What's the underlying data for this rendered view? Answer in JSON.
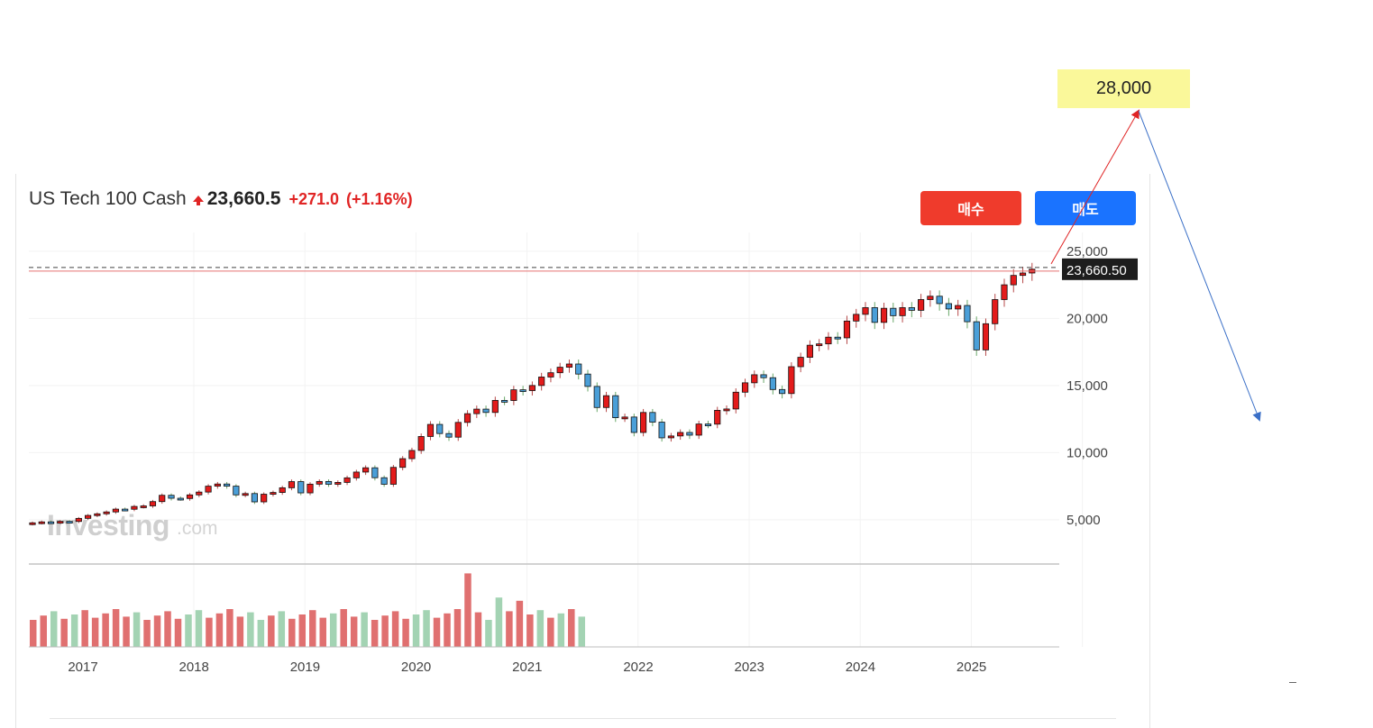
{
  "header": {
    "instrument": "US Tech 100 Cash",
    "price": "23,660.5",
    "change": "+271.0",
    "change_pct": "(+1.16%)"
  },
  "buttons": {
    "buy": "매수",
    "sell": "매도"
  },
  "annotation": {
    "target": "28,000",
    "current_label": "23,660.50"
  },
  "watermark": {
    "brand": "Investing",
    "suffix": ".com"
  },
  "colors": {
    "up": "#e31b1b",
    "down": "#4a9fd8",
    "vol_up": "#e07070",
    "vol_down": "#a3d3b3",
    "up_arrow": "#e02424",
    "down_arrow": "#3a6fc7"
  },
  "chart_data": {
    "type": "candlestick",
    "title": "US Tech 100 Cash",
    "y_ticks": [
      "25,000",
      "20,000",
      "15,000",
      "10,000",
      "5,000"
    ],
    "y_tick_values": [
      25000,
      20000,
      15000,
      10000,
      5000
    ],
    "x_ticks": [
      "2017",
      "2018",
      "2019",
      "2020",
      "2021",
      "2022",
      "2023",
      "2024",
      "2025"
    ],
    "x_tick_years": [
      2017,
      2018,
      2019,
      2020,
      2021,
      2022,
      2023,
      2024,
      2025
    ],
    "ylim": [
      1700,
      26400
    ],
    "interval": "monthly",
    "first_month": "2016-08",
    "current_price": 23660.5,
    "target_price": 28000,
    "grid": true,
    "monthly_close": [
      4770,
      4840,
      4800,
      4880,
      4870,
      5100,
      5320,
      5440,
      5580,
      5790,
      5780,
      5990,
      6030,
      6350,
      6820,
      6600,
      6580,
      6850,
      7060,
      7500,
      7660,
      7500,
      6850,
      6950,
      6330,
      6900,
      7030,
      7380,
      7840,
      7000,
      7650,
      7850,
      7640,
      7780,
      8120,
      8550,
      8870,
      8130,
      7640,
      8900,
      9550,
      10160,
      11200,
      12100,
      11420,
      11150,
      12250,
      12900,
      13240,
      12990,
      13890,
      13880,
      14680,
      14620,
      15000,
      15630,
      15950,
      16360,
      16600,
      15850,
      14930,
      13360,
      14240,
      12600,
      12650,
      11500,
      12990,
      12270,
      11100,
      11240,
      11500,
      11300,
      12130,
      12120,
      13150,
      13250,
      14500,
      15200,
      15800,
      15580,
      14700,
      14400,
      16400,
      17100,
      18000,
      18100,
      18600,
      18550,
      19800,
      20300,
      20800,
      19700,
      20750,
      20200,
      20800,
      20600,
      21400,
      21650,
      21100,
      20700,
      20960,
      19750,
      17650,
      19600,
      21400,
      22500,
      23200,
      23380,
      23660.5
    ],
    "volume_bars": 54
  }
}
